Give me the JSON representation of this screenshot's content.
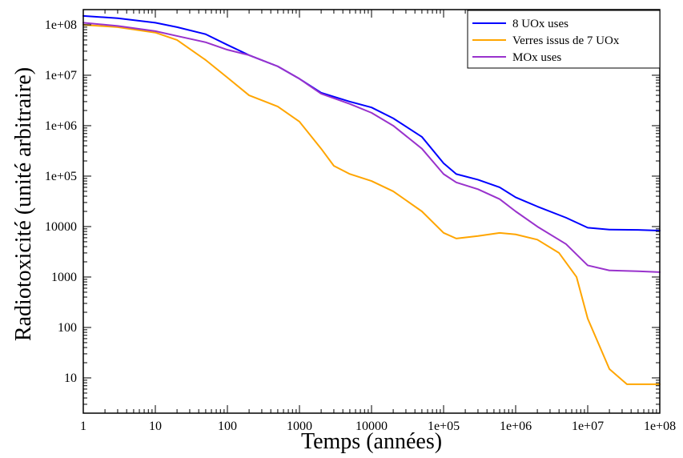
{
  "chart_data": {
    "type": "line",
    "xlabel": "Temps (années)",
    "ylabel": "Radiotoxicité (unité arbitraire)",
    "x_scale": "log",
    "y_scale": "log",
    "xlim": [
      1,
      100000000
    ],
    "ylim": [
      2,
      200000000
    ],
    "x_tick_labels": [
      "1",
      "10",
      "100",
      "1000",
      "10000",
      "1e+05",
      "1e+06",
      "1e+07",
      "1e+08"
    ],
    "y_tick_labels": [
      "10",
      "100",
      "1000",
      "10000",
      "1e+05",
      "1e+06",
      "1e+07",
      "1e+08"
    ],
    "grid": false,
    "legend_position": "top-right",
    "series": [
      {
        "name": "8 UOx uses",
        "color": "#0000ff",
        "points": [
          [
            1,
            150000000
          ],
          [
            3,
            135000000
          ],
          [
            10,
            110000000
          ],
          [
            20,
            90000000
          ],
          [
            50,
            65000000
          ],
          [
            100,
            40000000
          ],
          [
            200,
            25000000
          ],
          [
            500,
            15000000
          ],
          [
            1000,
            8500000
          ],
          [
            2000,
            4500000
          ],
          [
            5000,
            3000000
          ],
          [
            10000,
            2300000
          ],
          [
            20000,
            1400000
          ],
          [
            50000,
            600000
          ],
          [
            100000,
            180000
          ],
          [
            150000,
            110000
          ],
          [
            300000,
            85000
          ],
          [
            600000,
            60000
          ],
          [
            1000000,
            38000
          ],
          [
            2000000,
            25000
          ],
          [
            5000000,
            15000
          ],
          [
            10000000,
            9500
          ],
          [
            20000000,
            8700
          ],
          [
            50000000,
            8600
          ],
          [
            100000000,
            8300
          ]
        ]
      },
      {
        "name": "Verres issus de 7 UOx",
        "color": "#ffa500",
        "points": [
          [
            1,
            100000000
          ],
          [
            3,
            90000000
          ],
          [
            10,
            70000000
          ],
          [
            20,
            50000000
          ],
          [
            50,
            20000000
          ],
          [
            100,
            9000000
          ],
          [
            200,
            4000000
          ],
          [
            500,
            2400000
          ],
          [
            1000,
            1200000
          ],
          [
            2000,
            350000
          ],
          [
            3000,
            160000
          ],
          [
            5000,
            110000
          ],
          [
            10000,
            80000
          ],
          [
            20000,
            50000
          ],
          [
            50000,
            20000
          ],
          [
            100000,
            7500
          ],
          [
            150000,
            5800
          ],
          [
            300000,
            6500
          ],
          [
            600000,
            7500
          ],
          [
            1000000,
            7000
          ],
          [
            2000000,
            5500
          ],
          [
            4000000,
            3000
          ],
          [
            7000000,
            1000
          ],
          [
            10000000,
            150
          ],
          [
            20000000,
            15
          ],
          [
            35000000,
            7.5
          ],
          [
            100000000,
            7.5
          ]
        ]
      },
      {
        "name": "MOx uses",
        "color": "#9932cc",
        "points": [
          [
            1,
            110000000
          ],
          [
            3,
            95000000
          ],
          [
            10,
            75000000
          ],
          [
            20,
            60000000
          ],
          [
            50,
            45000000
          ],
          [
            100,
            32000000
          ],
          [
            200,
            25000000
          ],
          [
            500,
            15000000
          ],
          [
            1000,
            8500000
          ],
          [
            2000,
            4300000
          ],
          [
            5000,
            2700000
          ],
          [
            10000,
            1800000
          ],
          [
            20000,
            1000000
          ],
          [
            50000,
            350000
          ],
          [
            100000,
            110000
          ],
          [
            150000,
            75000
          ],
          [
            300000,
            55000
          ],
          [
            600000,
            35000
          ],
          [
            1000000,
            20000
          ],
          [
            2000000,
            10000
          ],
          [
            5000000,
            4500
          ],
          [
            10000000,
            1700
          ],
          [
            20000000,
            1350
          ],
          [
            50000000,
            1300
          ],
          [
            100000000,
            1250
          ]
        ]
      }
    ]
  }
}
